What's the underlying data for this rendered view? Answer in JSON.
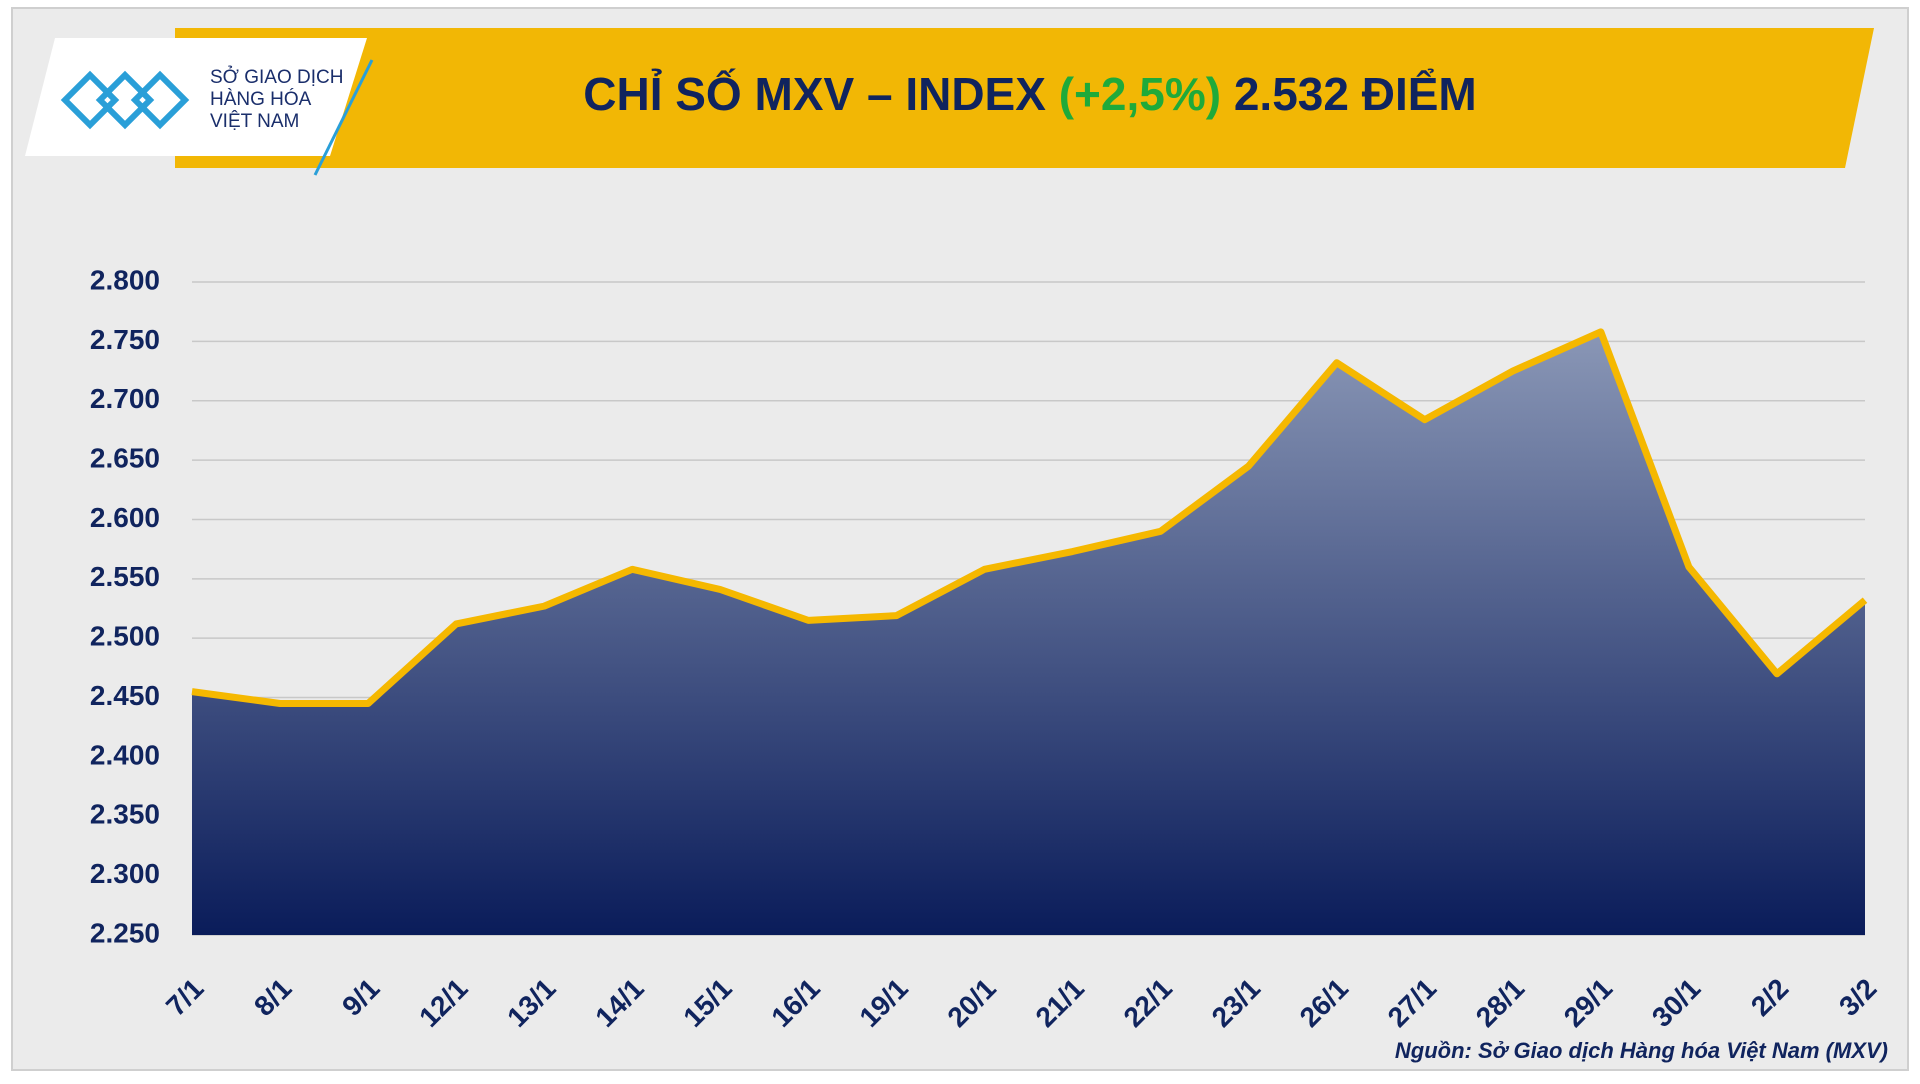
{
  "chart_data": {
    "type": "area",
    "title": "CHỈ SỐ MXV – INDEX",
    "title_change": "(+2,5%)",
    "title_value": "2.532 ĐIỂM",
    "logo_lines": [
      "SỞ GIAO DỊCH",
      "HÀNG HÓA",
      "VIỆT NAM"
    ],
    "source": "Nguồn: Sở Giao dịch Hàng hóa Việt Nam (MXV)",
    "categories": [
      "7/1",
      "8/1",
      "9/1",
      "12/1",
      "13/1",
      "14/1",
      "15/1",
      "16/1",
      "19/1",
      "20/1",
      "21/1",
      "22/1",
      "23/1",
      "26/1",
      "27/1",
      "28/1",
      "29/1",
      "30/1",
      "2/2",
      "3/2"
    ],
    "values": [
      2455,
      2445,
      2445,
      2512,
      2527,
      2558,
      2541,
      2515,
      2519,
      2558,
      2573,
      2590,
      2645,
      2732,
      2684,
      2725,
      2758,
      2560,
      2470,
      2532
    ],
    "color": "#f5b800",
    "area_colors": [
      "#8a97b6",
      "#0a1c5a"
    ],
    "ylim": [
      2250,
      2800
    ],
    "yticks": [
      {
        "value": 2250,
        "label": "2.250"
      },
      {
        "value": 2300,
        "label": "2.300"
      },
      {
        "value": 2350,
        "label": "2.350"
      },
      {
        "value": 2400,
        "label": "2.400"
      },
      {
        "value": 2450,
        "label": "2.450"
      },
      {
        "value": 2500,
        "label": "2.500"
      },
      {
        "value": 2550,
        "label": "2.550"
      },
      {
        "value": 2600,
        "label": "2.600"
      },
      {
        "value": 2650,
        "label": "2.650"
      },
      {
        "value": 2700,
        "label": "2.700"
      },
      {
        "value": 2750,
        "label": "2.750"
      },
      {
        "value": 2800,
        "label": "2.800"
      }
    ],
    "grid": true
  }
}
